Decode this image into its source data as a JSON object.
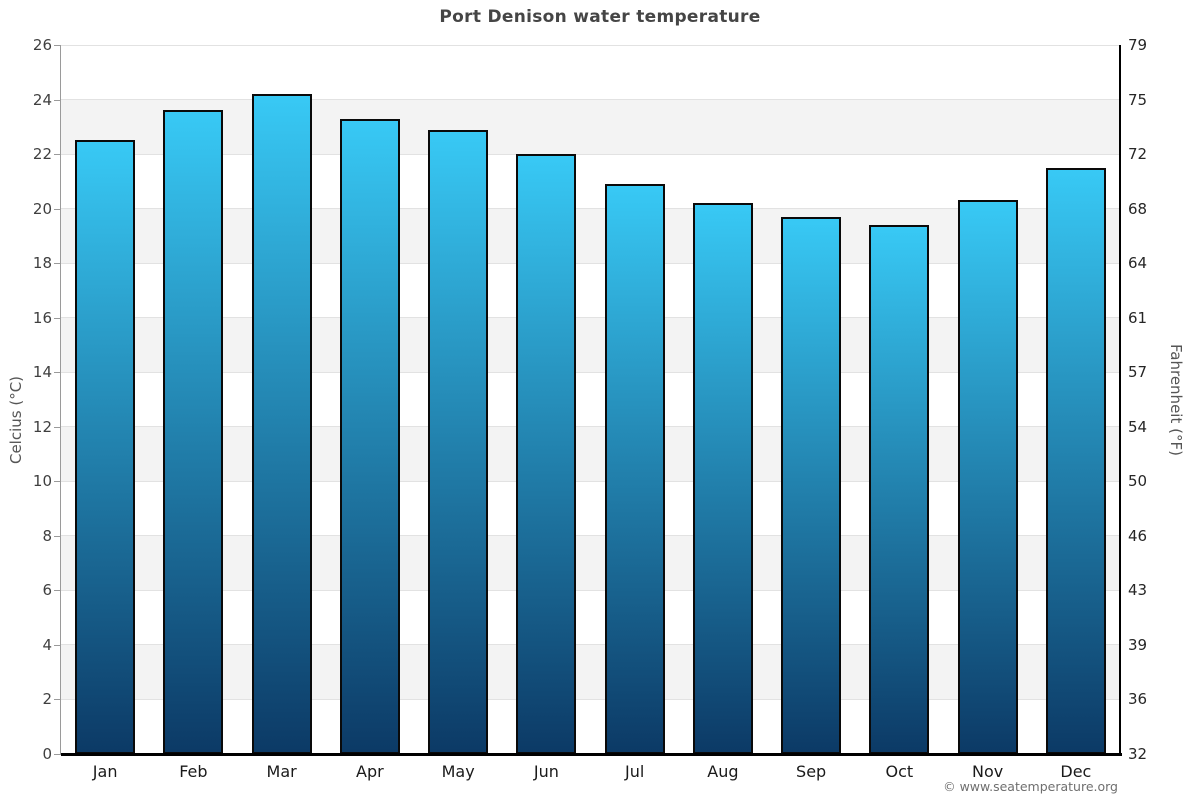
{
  "page": {
    "copyright": "© www.seatemperature.org"
  },
  "chart_data": {
    "type": "bar",
    "title": "Port Denison water temperature",
    "categories": [
      "Jan",
      "Feb",
      "Mar",
      "Apr",
      "May",
      "Jun",
      "Jul",
      "Aug",
      "Sep",
      "Oct",
      "Nov",
      "Dec"
    ],
    "values": [
      22.5,
      23.6,
      24.2,
      23.3,
      22.9,
      22.0,
      20.9,
      20.2,
      19.7,
      19.4,
      20.3,
      21.5
    ],
    "series_name": "Water temperature (°C)",
    "xlabel": "",
    "ylabel_left": "Celcius (°C)",
    "ylabel_right": "Fahrenheit (°F)",
    "ylim_celsius": [
      0,
      26
    ],
    "celsius_ticks": [
      0,
      2,
      4,
      6,
      8,
      10,
      12,
      14,
      16,
      18,
      20,
      22,
      24,
      26
    ],
    "fahrenheit_ticks": [
      32,
      36,
      39,
      43,
      46,
      50,
      54,
      57,
      61,
      64,
      68,
      72,
      75,
      79
    ],
    "grid": "horizontal gridlines every 2°C, alternating white/gray background bands",
    "legend": "none",
    "colors": {
      "bar_gradient_top": "#38c9f5",
      "bar_gradient_bottom": "#0c3a66",
      "bar_border": "#0a0a0a",
      "band_gray": "#f3f3f3",
      "band_white": "#ffffff",
      "gridline": "#e2e2e2",
      "axis_left": "#9a9a9a",
      "axis_black": "#000000",
      "title_text": "#454545",
      "tick_text_left": "#3f3f3f",
      "tick_text_right": "#262626",
      "month_text": "#1a1a1a",
      "axis_title_text": "#555555",
      "copyright_text": "#6f6f6f"
    }
  }
}
